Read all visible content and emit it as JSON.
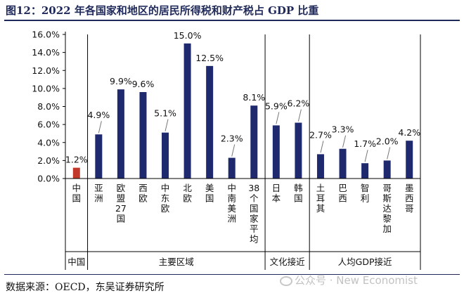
{
  "title": "图12：2022 年各国家和地区的居民所得税和财产税占 GDP 比重",
  "source": "数据来源：OECD，东吴证券研究所",
  "watermark": "公众号 · New Economist",
  "colors": {
    "highlight": "#c0392b",
    "bar": "#1f2a6e",
    "title": "#1f2a5a",
    "axis": "#000000"
  },
  "chart_data": {
    "type": "bar",
    "categories": [
      "中国",
      "亚洲",
      "欧盟27国",
      "西欧",
      "中东欧",
      "北欧",
      "美国",
      "中南美洲",
      "38个国家平均",
      "日本",
      "韩国",
      "土耳其",
      "巴西",
      "智利",
      "哥斯达黎加",
      "墨西哥"
    ],
    "values": [
      1.2,
      4.9,
      9.9,
      9.6,
      5.1,
      15.0,
      12.5,
      2.3,
      8.1,
      5.9,
      6.2,
      2.7,
      3.3,
      1.7,
      2.0,
      4.2
    ],
    "value_labels": [
      "1.2%",
      "4.9%",
      "9.9%",
      "9.6%",
      "5.1%",
      "15.0%",
      "12.5%",
      "2.3%",
      "8.1%",
      "5.9%",
      "6.2%",
      "2.7%",
      "3.3%",
      "1.7%",
      "2.0%",
      "4.2%"
    ],
    "highlight": [
      "中国"
    ],
    "yticks": [
      "0.0%",
      "2.0%",
      "4.0%",
      "6.0%",
      "8.0%",
      "10.0%",
      "12.0%",
      "14.0%",
      "16.0%"
    ],
    "ylim": [
      0,
      16
    ],
    "grid": false,
    "groups": [
      {
        "label": "中国",
        "count": 1
      },
      {
        "label": "主要区域",
        "count": 8
      },
      {
        "label": "文化接近",
        "count": 2
      },
      {
        "label": "人均GDP接近",
        "count": 5
      }
    ]
  }
}
